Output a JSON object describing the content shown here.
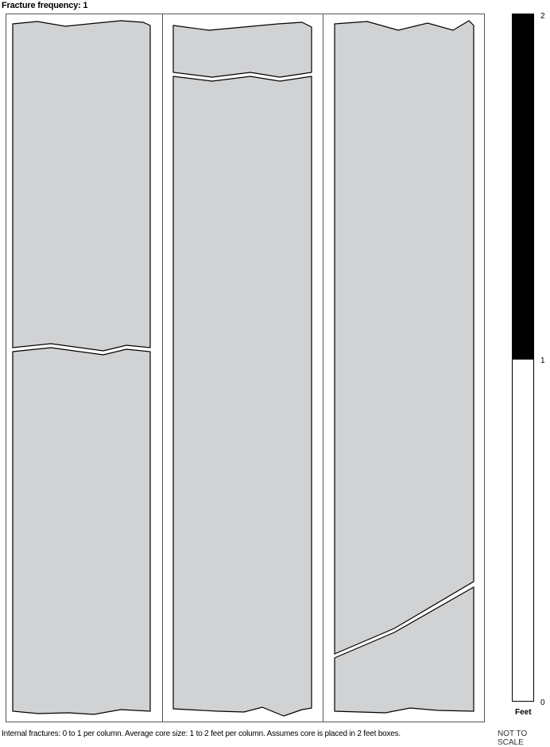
{
  "title": "Fracture frequency: 1",
  "caption": "Internal fractures: 0 to 1 per column. Average core size: 1 to 2 feet per column. Assumes core is placed in 2 feet boxes.",
  "not_to_scale": "NOT TO SCALE",
  "scale": {
    "unit": "Feet",
    "ticks": [
      "2",
      "1",
      "0"
    ],
    "black_segment": "1 to 2",
    "white_segment": "0 to 1"
  },
  "colors": {
    "core": "#d1d2d4",
    "outline": "#000000",
    "scale_black": "#000000"
  },
  "columns": [
    {
      "pieces": 2
    },
    {
      "pieces": 2
    },
    {
      "pieces": 2
    }
  ]
}
